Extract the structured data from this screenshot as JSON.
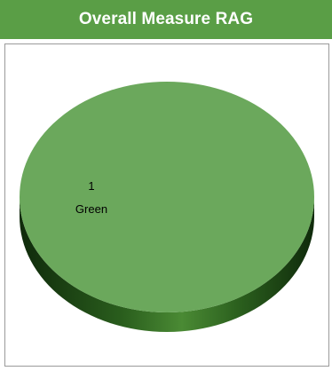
{
  "header": {
    "title": "Overall Measure RAG"
  },
  "colors": {
    "header_bg": "#5a9e46",
    "slice_top": "#6ba85c",
    "slice_side_dark": "#1f4a16",
    "slice_side_mid": "#3a7a28"
  },
  "chart_data": {
    "type": "pie",
    "style": "3d",
    "title": "Overall Measure RAG",
    "slices": [
      {
        "label": "Green",
        "value": 1,
        "color": "#6ba85c"
      }
    ],
    "data_labels": [
      "1",
      "Green"
    ]
  }
}
